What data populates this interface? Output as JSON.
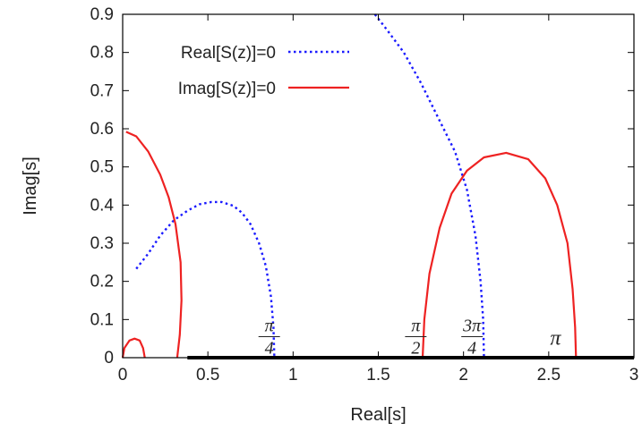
{
  "chart_data": {
    "type": "line",
    "xlabel": "Real[s]",
    "ylabel": "Imag[s]",
    "xlim": [
      0,
      3
    ],
    "ylim": [
      0,
      0.9
    ],
    "x_ticks": [
      "0",
      "0.5",
      "1",
      "1.5",
      "2",
      "2.5",
      "3"
    ],
    "y_ticks": [
      "0",
      "0.1",
      "0.2",
      "0.3",
      "0.4",
      "0.5",
      "0.6",
      "0.7",
      "0.8",
      "0.9"
    ],
    "grid": false,
    "legend_position": "top-left",
    "legend": [
      {
        "label": "Real[S(z)]=0",
        "style": "dotted",
        "color": "#1a1aff"
      },
      {
        "label": "Imag[S(z)]=0",
        "style": "solid",
        "color": "#ee2222"
      }
    ],
    "series": [
      {
        "name": "Real[S(z)]=0",
        "color": "#1a1aff",
        "style": "dotted",
        "segments": [
          [
            [
              0.08,
              0.233
            ],
            [
              0.15,
              0.273
            ],
            [
              0.22,
              0.32
            ],
            [
              0.3,
              0.36
            ],
            [
              0.38,
              0.385
            ],
            [
              0.45,
              0.402
            ],
            [
              0.52,
              0.408
            ],
            [
              0.58,
              0.408
            ],
            [
              0.65,
              0.398
            ],
            [
              0.7,
              0.38
            ],
            [
              0.75,
              0.35
            ],
            [
              0.8,
              0.3
            ],
            [
              0.84,
              0.24
            ],
            [
              0.87,
              0.16
            ],
            [
              0.885,
              0.08
            ],
            [
              0.89,
              0.0
            ]
          ],
          [
            [
              1.48,
              0.9
            ],
            [
              1.55,
              0.86
            ],
            [
              1.65,
              0.8
            ],
            [
              1.75,
              0.72
            ],
            [
              1.85,
              0.63
            ],
            [
              1.95,
              0.54
            ],
            [
              2.02,
              0.44
            ],
            [
              2.07,
              0.32
            ],
            [
              2.1,
              0.2
            ],
            [
              2.115,
              0.1
            ],
            [
              2.12,
              0.0
            ]
          ]
        ]
      },
      {
        "name": "Imag[S(z)]=0",
        "color": "#ee2222",
        "style": "solid",
        "segments": [
          [
            [
              0.0,
              0.0
            ],
            [
              0.01,
              0.025
            ],
            [
              0.04,
              0.045
            ],
            [
              0.07,
              0.05
            ],
            [
              0.1,
              0.045
            ],
            [
              0.12,
              0.025
            ],
            [
              0.13,
              0.0
            ]
          ],
          [
            [
              0.02,
              0.592
            ],
            [
              0.08,
              0.58
            ],
            [
              0.15,
              0.54
            ],
            [
              0.22,
              0.48
            ],
            [
              0.27,
              0.42
            ],
            [
              0.31,
              0.35
            ],
            [
              0.34,
              0.25
            ],
            [
              0.345,
              0.15
            ],
            [
              0.335,
              0.06
            ],
            [
              0.32,
              0.0
            ]
          ],
          [
            [
              1.76,
              0.0
            ],
            [
              1.77,
              0.1
            ],
            [
              1.8,
              0.22
            ],
            [
              1.86,
              0.34
            ],
            [
              1.93,
              0.43
            ],
            [
              2.02,
              0.49
            ],
            [
              2.12,
              0.525
            ],
            [
              2.25,
              0.537
            ],
            [
              2.38,
              0.52
            ],
            [
              2.48,
              0.47
            ],
            [
              2.55,
              0.4
            ],
            [
              2.61,
              0.3
            ],
            [
              2.64,
              0.18
            ],
            [
              2.655,
              0.08
            ],
            [
              2.66,
              0.0
            ]
          ]
        ]
      },
      {
        "name": "",
        "color": "#000000",
        "style": "bold",
        "segments": [
          [
            [
              0.38,
              0.0
            ],
            [
              3.0,
              0.0
            ]
          ]
        ]
      }
    ],
    "annotations": [
      {
        "num": "π",
        "den": "4",
        "x": 0.86,
        "y": 0.055
      },
      {
        "num": "π",
        "den": "2",
        "x": 1.72,
        "y": 0.055
      },
      {
        "num": "3π",
        "den": "4",
        "x": 2.05,
        "y": 0.055
      },
      {
        "num": "π",
        "den": "",
        "x": 2.54,
        "y": 0.055
      }
    ]
  }
}
